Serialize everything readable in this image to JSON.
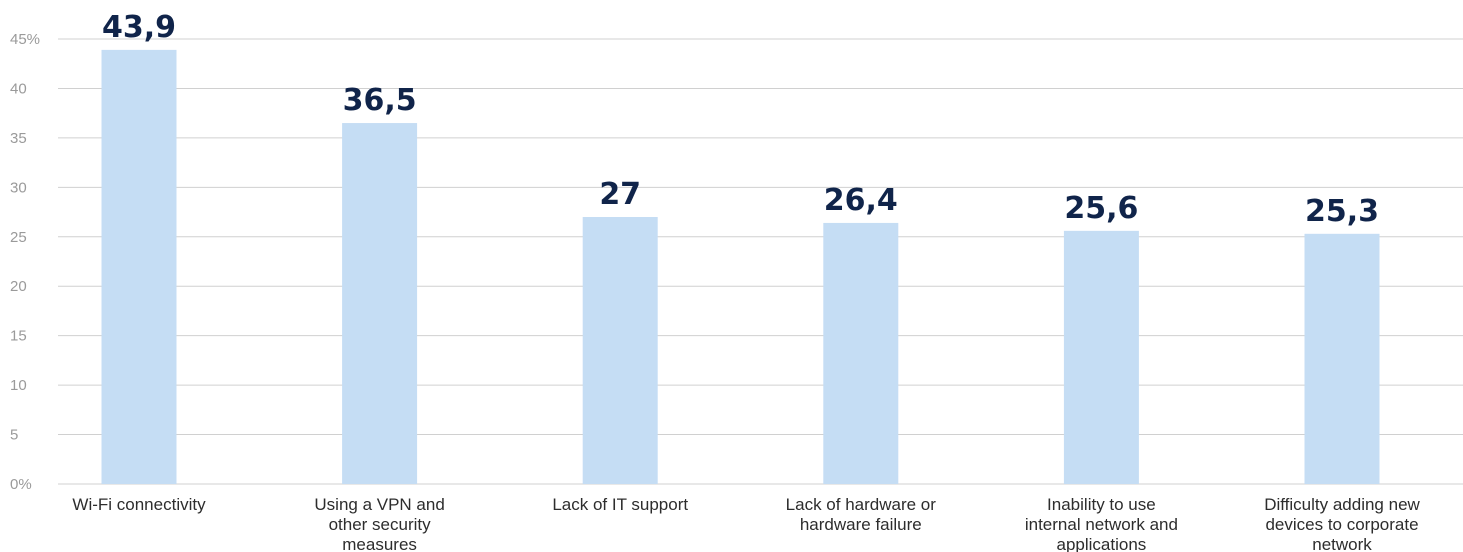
{
  "chart_data": {
    "type": "bar",
    "categories": [
      [
        "Wi-Fi connectivity"
      ],
      [
        "Using a VPN and",
        "other security",
        "measures"
      ],
      [
        "Lack of IT support"
      ],
      [
        "Lack of hardware or",
        "hardware failure"
      ],
      [
        "Inability to use",
        "internal network and",
        "applications"
      ],
      [
        "Difficulty adding new",
        "devices to corporate",
        "network"
      ]
    ],
    "values": [
      43.9,
      36.5,
      27,
      26.4,
      25.6,
      25.3
    ],
    "data_labels": [
      "43,9",
      "36,5",
      "27",
      "26,4",
      "25,6",
      "25,3"
    ],
    "y_ticks": [
      {
        "value": 0,
        "label": "0%"
      },
      {
        "value": 5,
        "label": "5"
      },
      {
        "value": 10,
        "label": "10"
      },
      {
        "value": 15,
        "label": "15"
      },
      {
        "value": 20,
        "label": "20"
      },
      {
        "value": 25,
        "label": "25"
      },
      {
        "value": 30,
        "label": "30"
      },
      {
        "value": 35,
        "label": "35"
      },
      {
        "value": 40,
        "label": "40"
      },
      {
        "value": 45,
        "label": "45%"
      }
    ],
    "ylim": [
      0,
      45
    ],
    "grid": true,
    "title": "",
    "xlabel": "",
    "ylabel": "",
    "colors": {
      "bar": "#c5ddf4",
      "data_label": "#10244a",
      "grid": "#d0d0d0",
      "tick_label": "#9a9a9a",
      "category_label": "#2d2d2d"
    }
  }
}
